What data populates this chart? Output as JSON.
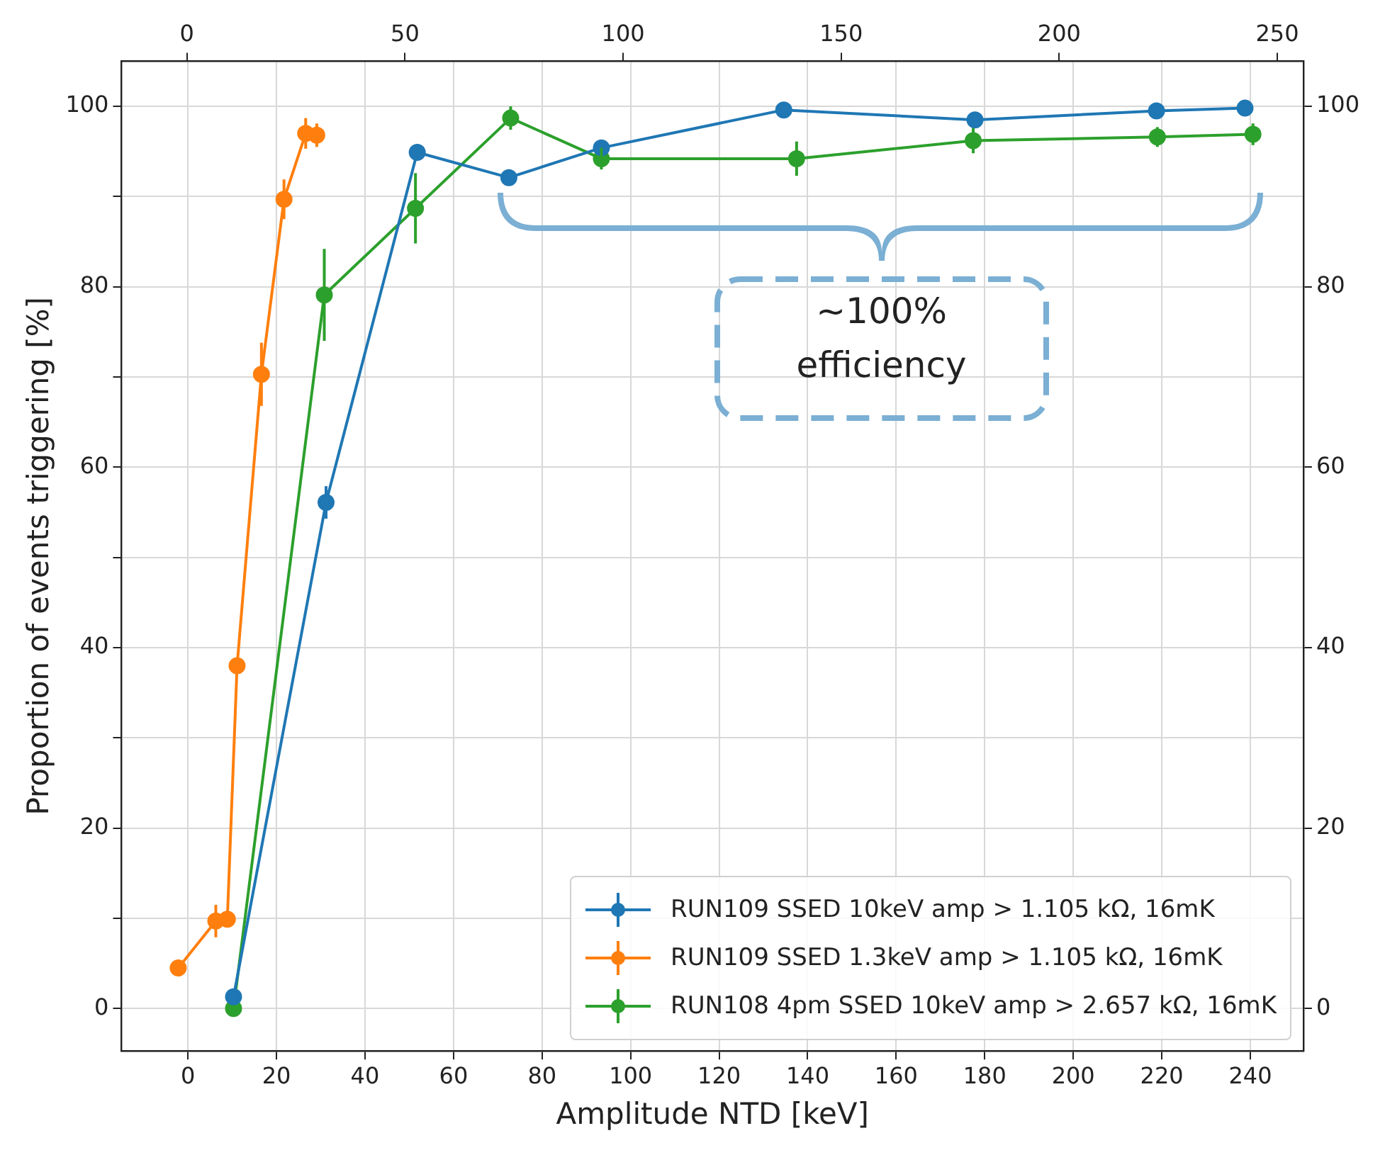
{
  "chart_data": {
    "type": "line",
    "xlabel": "Amplitude NTD [keV]",
    "ylabel": "Proportion of events triggering [%]",
    "xlim": [
      -15,
      252
    ],
    "xticks": [
      0,
      20,
      40,
      60,
      80,
      100,
      120,
      140,
      160,
      180,
      200,
      220,
      240
    ],
    "x2lim": [
      -15,
      256
    ],
    "x2ticks": [
      0,
      50,
      100,
      150,
      200,
      250
    ],
    "ylim": [
      -4.7,
      105
    ],
    "yticks": [
      0,
      {
        "value": 10,
        "label": null
      },
      20,
      {
        "value": 30,
        "label": null
      },
      40,
      {
        "value": 50,
        "label": null
      },
      60,
      {
        "value": 70,
        "label": null
      },
      80,
      {
        "value": 90,
        "label": null
      },
      100
    ],
    "y2lim": [
      -4.7,
      105
    ],
    "y2ticks": [
      0,
      20,
      40,
      60,
      80,
      100
    ],
    "grid": true,
    "legend": "bottom right",
    "marker": "circle",
    "line_style": "solid",
    "annotations": [
      "~100%\nefficiency"
    ],
    "series": [
      {
        "name": "RUN109 SSED 10keV amp > 1.105 kΩ, 16mK",
        "color": "#1f77b4",
        "x": [
          10.3,
          31.2,
          51.8,
          72.5,
          93.4,
          134.6,
          177.8,
          218.8,
          238.8
        ],
        "values": [
          1.3,
          56.1,
          94.9,
          92.1,
          95.4,
          99.6,
          98.5,
          99.5,
          99.8
        ],
        "errors": [
          null,
          1.8,
          null,
          null,
          null,
          null,
          null,
          null,
          null
        ]
      },
      {
        "name": "RUN109 SSED 1.3keV amp > 1.105 kΩ, 16mK",
        "color": "#ff7f0e",
        "x": [
          -2.2,
          6.3,
          8.9,
          11.1,
          16.6,
          21.7,
          26.6,
          29.1
        ],
        "values": [
          4.5,
          9.7,
          9.9,
          38,
          70.3,
          89.7,
          97,
          96.8
        ],
        "errors": [
          null,
          1.8,
          0.8,
          null,
          3.5,
          2.2,
          1.7,
          1.3
        ]
      },
      {
        "name": "RUN108 4pm SSED 10keV amp > 2.657 kΩ, 16mK",
        "color": "#2ca02c",
        "x": [
          10.3,
          30.8,
          51.4,
          72.9,
          93.4,
          137.5,
          177.4,
          219,
          240.6
        ],
        "values": [
          0,
          79.1,
          88.7,
          98.7,
          94.2,
          94.2,
          96.2,
          96.6,
          96.9
        ],
        "errors": [
          null,
          5.1,
          3.9,
          1.3,
          1.2,
          1.9,
          1.4,
          1.1,
          1.2
        ]
      }
    ]
  }
}
